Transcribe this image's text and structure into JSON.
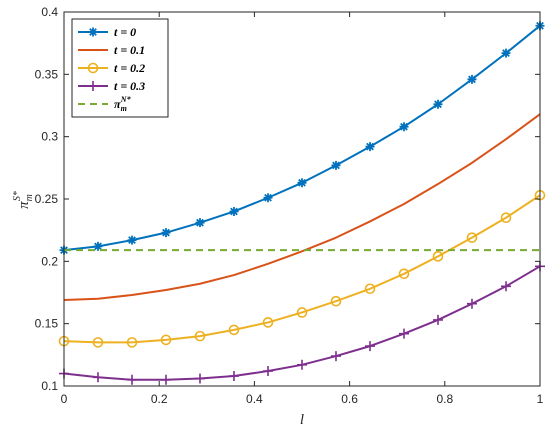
{
  "chart_data": {
    "type": "line",
    "title": "",
    "xlabel": "l",
    "ylabel": "π",
    "ylabel_sub": "m",
    "ylabel_sup": "S*",
    "xlim": [
      0,
      1
    ],
    "ylim": [
      0.1,
      0.4
    ],
    "xticks": [
      "0",
      "0.2",
      "0.4",
      "0.6",
      "0.8",
      "1"
    ],
    "yticks": [
      "0.1",
      "0.15",
      "0.2",
      "0.25",
      "0.3",
      "0.35",
      "0.4"
    ],
    "grid": false,
    "legend_position": "top-left",
    "series": [
      {
        "name": "t = 0",
        "color": "#0072BD",
        "marker": "asterisk",
        "x": [
          0,
          0.0714,
          0.1429,
          0.2143,
          0.2857,
          0.3571,
          0.4286,
          0.5,
          0.5714,
          0.6429,
          0.7143,
          0.7857,
          0.8571,
          0.9286,
          1
        ],
        "y": [
          0.209,
          0.212,
          0.217,
          0.223,
          0.231,
          0.24,
          0.251,
          0.263,
          0.277,
          0.292,
          0.308,
          0.326,
          0.346,
          0.367,
          0.389
        ]
      },
      {
        "name": "t = 0.1",
        "color": "#D95319",
        "marker": "none",
        "x": [
          0,
          0.0714,
          0.1429,
          0.2143,
          0.2857,
          0.3571,
          0.4286,
          0.5,
          0.5714,
          0.6429,
          0.7143,
          0.7857,
          0.8571,
          0.9286,
          1
        ],
        "y": [
          0.169,
          0.17,
          0.173,
          0.177,
          0.182,
          0.189,
          0.198,
          0.208,
          0.219,
          0.232,
          0.246,
          0.262,
          0.279,
          0.298,
          0.318
        ]
      },
      {
        "name": "t = 0.2",
        "color": "#EDB120",
        "marker": "circle",
        "x": [
          0,
          0.0714,
          0.1429,
          0.2143,
          0.2857,
          0.3571,
          0.4286,
          0.5,
          0.5714,
          0.6429,
          0.7143,
          0.7857,
          0.8571,
          0.9286,
          1
        ],
        "y": [
          0.136,
          0.135,
          0.135,
          0.137,
          0.14,
          0.145,
          0.151,
          0.159,
          0.168,
          0.178,
          0.19,
          0.204,
          0.219,
          0.235,
          0.253
        ]
      },
      {
        "name": "t = 0.3",
        "color": "#7E2F8E",
        "marker": "plus",
        "x": [
          0,
          0.0714,
          0.1429,
          0.2143,
          0.2857,
          0.3571,
          0.4286,
          0.5,
          0.5714,
          0.6429,
          0.7143,
          0.7857,
          0.8571,
          0.9286,
          1
        ],
        "y": [
          0.11,
          0.107,
          0.105,
          0.105,
          0.106,
          0.108,
          0.112,
          0.117,
          0.124,
          0.132,
          0.142,
          0.153,
          0.166,
          0.18,
          0.196
        ]
      },
      {
        "name": "π",
        "name_sub": "m",
        "name_sup": "N*",
        "color": "#77AC30",
        "marker": "none",
        "dashed": true,
        "x": [
          0,
          1
        ],
        "y": [
          0.209,
          0.209
        ]
      }
    ]
  }
}
